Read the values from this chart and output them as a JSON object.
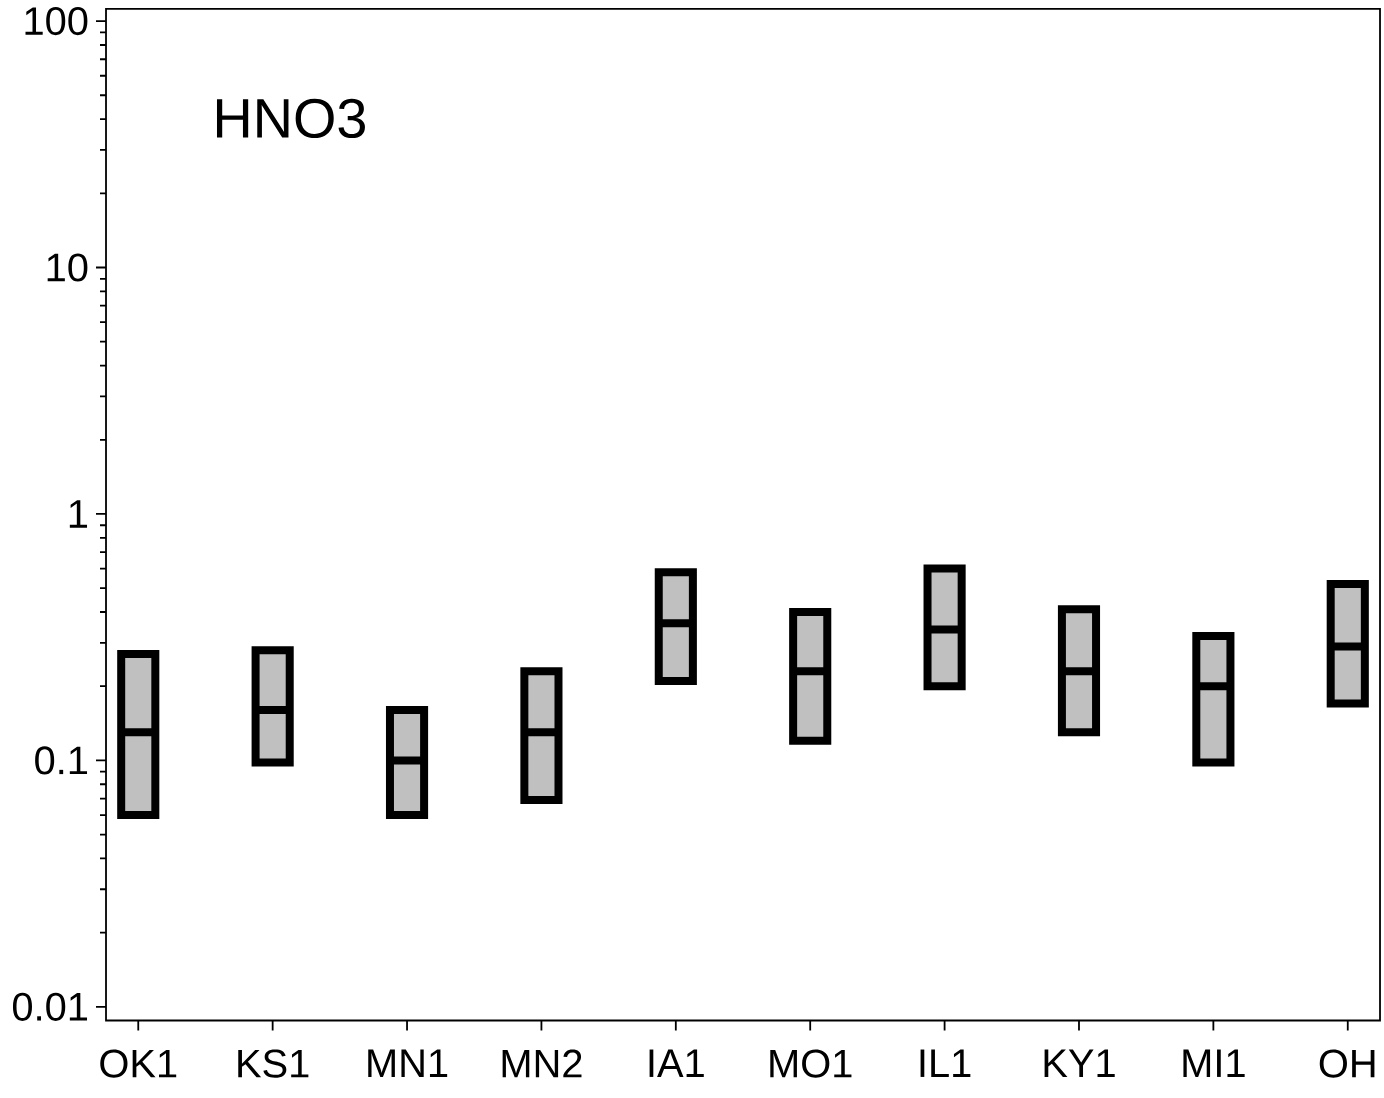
{
  "chart_data": {
    "type": "box",
    "title": "HNO3",
    "categories": [
      "OK1",
      "KS1",
      "MN1",
      "MN2",
      "IA1",
      "MO1",
      "IL1",
      "KY1",
      "MI1",
      "OH"
    ],
    "boxes": [
      {
        "low": 0.06,
        "q1": 0.06,
        "median": 0.13,
        "q3": 0.27,
        "high": 0.27
      },
      {
        "low": 0.098,
        "q1": 0.098,
        "median": 0.16,
        "q3": 0.28,
        "high": 0.28
      },
      {
        "low": 0.06,
        "q1": 0.06,
        "median": 0.1,
        "q3": 0.16,
        "high": 0.16
      },
      {
        "low": 0.069,
        "q1": 0.069,
        "median": 0.13,
        "q3": 0.23,
        "high": 0.23
      },
      {
        "low": 0.21,
        "q1": 0.21,
        "median": 0.36,
        "q3": 0.58,
        "high": 0.58
      },
      {
        "low": 0.12,
        "q1": 0.12,
        "median": 0.23,
        "q3": 0.4,
        "high": 0.4
      },
      {
        "low": 0.2,
        "q1": 0.2,
        "median": 0.34,
        "q3": 0.6,
        "high": 0.6
      },
      {
        "low": 0.13,
        "q1": 0.13,
        "median": 0.23,
        "q3": 0.41,
        "high": 0.41
      },
      {
        "low": 0.098,
        "q1": 0.098,
        "median": 0.2,
        "q3": 0.32,
        "high": 0.32
      },
      {
        "low": 0.17,
        "q1": 0.17,
        "median": 0.29,
        "q3": 0.52,
        "high": 0.52
      }
    ],
    "color": "#c0c0c0",
    "log": true,
    "ylim": [
      0.0088,
      112
    ],
    "yticks": [
      0.01,
      {
        "value": 0.02,
        "label": null
      },
      {
        "value": 0.03,
        "label": null
      },
      {
        "value": 0.04,
        "label": null
      },
      {
        "value": 0.05,
        "label": null
      },
      {
        "value": 0.06,
        "label": null
      },
      {
        "value": 0.07,
        "label": null
      },
      {
        "value": 0.08,
        "label": null
      },
      {
        "value": 0.09,
        "label": null
      },
      0.1,
      {
        "value": 0.2,
        "label": null
      },
      {
        "value": 0.3,
        "label": null
      },
      {
        "value": 0.4,
        "label": null
      },
      {
        "value": 0.5,
        "label": null
      },
      {
        "value": 0.6,
        "label": null
      },
      {
        "value": 0.7,
        "label": null
      },
      {
        "value": 0.8,
        "label": null
      },
      {
        "value": 0.9,
        "label": null
      },
      1,
      {
        "value": 2,
        "label": null
      },
      {
        "value": 3,
        "label": null
      },
      {
        "value": 4,
        "label": null
      },
      {
        "value": 5,
        "label": null
      },
      {
        "value": 6,
        "label": null
      },
      {
        "value": 7,
        "label": null
      },
      {
        "value": 8,
        "label": null
      },
      {
        "value": 9,
        "label": null
      },
      10,
      {
        "value": 20,
        "label": null
      },
      {
        "value": 30,
        "label": null
      },
      {
        "value": 40,
        "label": null
      },
      {
        "value": 50,
        "label": null
      },
      {
        "value": 60,
        "label": null
      },
      {
        "value": 70,
        "label": null
      },
      {
        "value": 80,
        "label": null
      },
      {
        "value": 90,
        "label": null
      },
      100
    ]
  }
}
